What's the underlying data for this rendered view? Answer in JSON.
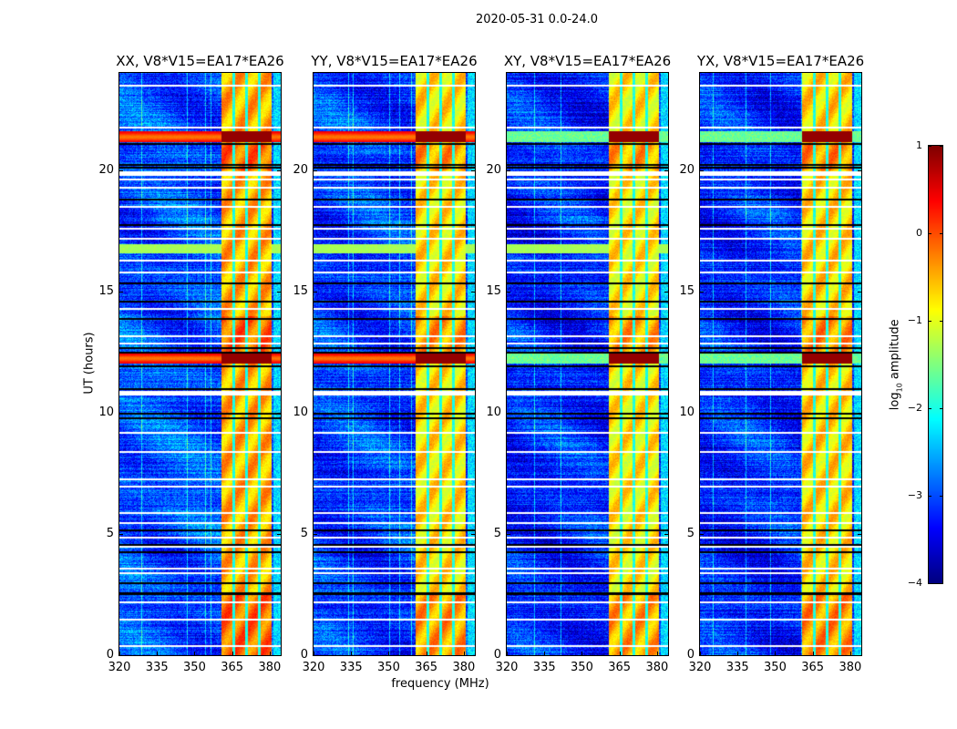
{
  "chart_data": {
    "type": "heatmap",
    "suptitle": "2020-05-31 0.0-24.0",
    "xlabel": "frequency (MHz)",
    "ylabel": "UT (hours)",
    "xlim": [
      320,
      384.4
    ],
    "ylim": [
      0,
      24
    ],
    "xticks": [
      "320",
      "335",
      "350",
      "365",
      "380"
    ],
    "xtick_values": [
      320,
      335,
      350,
      365,
      380
    ],
    "yticks": [
      "0",
      "5",
      "10",
      "15",
      "20"
    ],
    "ytick_values": [
      0,
      5,
      10,
      15,
      20
    ],
    "colormap": "jet",
    "colorbar": {
      "label_prefix": "log",
      "label_sub": "10",
      "label_suffix": " amplitude",
      "range": [
        -4,
        1
      ],
      "ticks": [
        "1",
        "0",
        "−1",
        "−2",
        "−3",
        "−4"
      ],
      "tick_values": [
        1,
        0,
        -1,
        -2,
        -3,
        -4
      ]
    },
    "panels": [
      {
        "title": "XX, V8*V15=EA17*EA26",
        "baseline": -3.0,
        "rfi_level": -0.5,
        "strong_rows_full": true
      },
      {
        "title": "YY, V8*V15=EA17*EA26",
        "baseline": -3.1,
        "rfi_level": -0.75,
        "strong_rows_full": true
      },
      {
        "title": "XY, V8*V15=EA17*EA26",
        "baseline": -3.2,
        "rfi_level": -0.8,
        "strong_rows_full": false
      },
      {
        "title": "YX, V8*V15=EA17*EA26",
        "baseline": -3.2,
        "rfi_level": -0.7,
        "strong_rows_full": false
      }
    ],
    "features": {
      "rfi_band_mhz": [
        360.7,
        380.4
      ],
      "rfi_gaps_mhz": [
        365.5,
        370.5,
        375.6
      ],
      "strong_rows_hours": [
        [
          21.15,
          21.6
        ],
        [
          12.05,
          12.45
        ]
      ],
      "green_band_hours": [
        16.6,
        16.95
      ],
      "flagged_white_hours": [
        23.5,
        21.8,
        19.85,
        19.65,
        19.3,
        18.5,
        17.6,
        17.2,
        16.3,
        15.8,
        14.3,
        13.2,
        12.9,
        10.85,
        10.78,
        9.2,
        8.4,
        7.3,
        7.0,
        5.9,
        5.5,
        4.9,
        4.5,
        3.6,
        3.4,
        2.2,
        1.5,
        0.4
      ],
      "flagged_black_hours": [
        21.1,
        20.25,
        20.15,
        18.8,
        17.75,
        15.35,
        14.6,
        13.9,
        12.7,
        12.5,
        11.95,
        11.0,
        10.0,
        9.8,
        5.2,
        4.6,
        4.3,
        3.0,
        2.6,
        2.55
      ]
    }
  }
}
